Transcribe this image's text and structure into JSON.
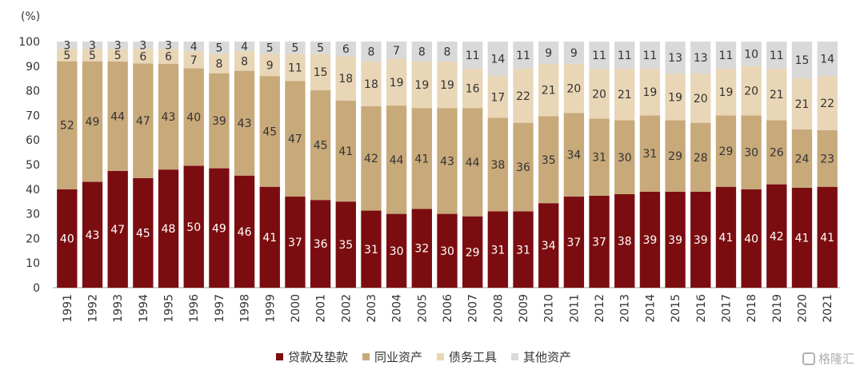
{
  "chart_data": {
    "type": "bar",
    "stacked": true,
    "ylabel": "(%)",
    "ylim": [
      0,
      100
    ],
    "yticks": [
      0,
      10,
      20,
      30,
      40,
      50,
      60,
      70,
      80,
      90,
      100
    ],
    "categories": [
      "1991",
      "1992",
      "1993",
      "1994",
      "1995",
      "1996",
      "1997",
      "1998",
      "1999",
      "2000",
      "2001",
      "2002",
      "2003",
      "2004",
      "2005",
      "2006",
      "2007",
      "2008",
      "2009",
      "2010",
      "2011",
      "2012",
      "2013",
      "2014",
      "2015",
      "2016",
      "2017",
      "2018",
      "2019",
      "2020",
      "2021"
    ],
    "series": [
      {
        "name": "贷款及垫款",
        "color": "#7b0d10",
        "label_color": "#ffffff",
        "values": [
          40,
          43,
          47,
          45,
          48,
          50,
          49,
          46,
          41,
          37,
          36,
          35,
          31,
          30,
          32,
          30,
          29,
          31,
          31,
          34,
          37,
          37,
          38,
          39,
          39,
          39,
          41,
          40,
          42,
          41,
          41
        ]
      },
      {
        "name": "同业资产",
        "color": "#c8a97a",
        "label_color": "#333333",
        "values": [
          52,
          49,
          44,
          47,
          43,
          40,
          39,
          43,
          45,
          47,
          45,
          41,
          42,
          44,
          41,
          43,
          44,
          38,
          36,
          35,
          34,
          31,
          30,
          31,
          29,
          28,
          29,
          30,
          26,
          24,
          23
        ]
      },
      {
        "name": "债务工具",
        "color": "#e8d6b6",
        "label_color": "#333333",
        "values": [
          5,
          5,
          5,
          6,
          6,
          7,
          8,
          8,
          9,
          11,
          15,
          18,
          18,
          19,
          19,
          19,
          16,
          17,
          22,
          21,
          20,
          20,
          21,
          19,
          19,
          20,
          19,
          20,
          21,
          21,
          22
        ]
      },
      {
        "name": "其他资产",
        "color": "#d9d9d9",
        "label_color": "#333333",
        "values": [
          3,
          3,
          3,
          3,
          3,
          4,
          5,
          4,
          5,
          5,
          5,
          6,
          8,
          7,
          8,
          8,
          11,
          14,
          11,
          9,
          9,
          11,
          11,
          11,
          13,
          13,
          11,
          10,
          11,
          15,
          14
        ]
      }
    ],
    "legend_position": "bottom"
  },
  "watermark": {
    "text": "格隆汇",
    "icon": "gelonghui-logo-icon"
  }
}
